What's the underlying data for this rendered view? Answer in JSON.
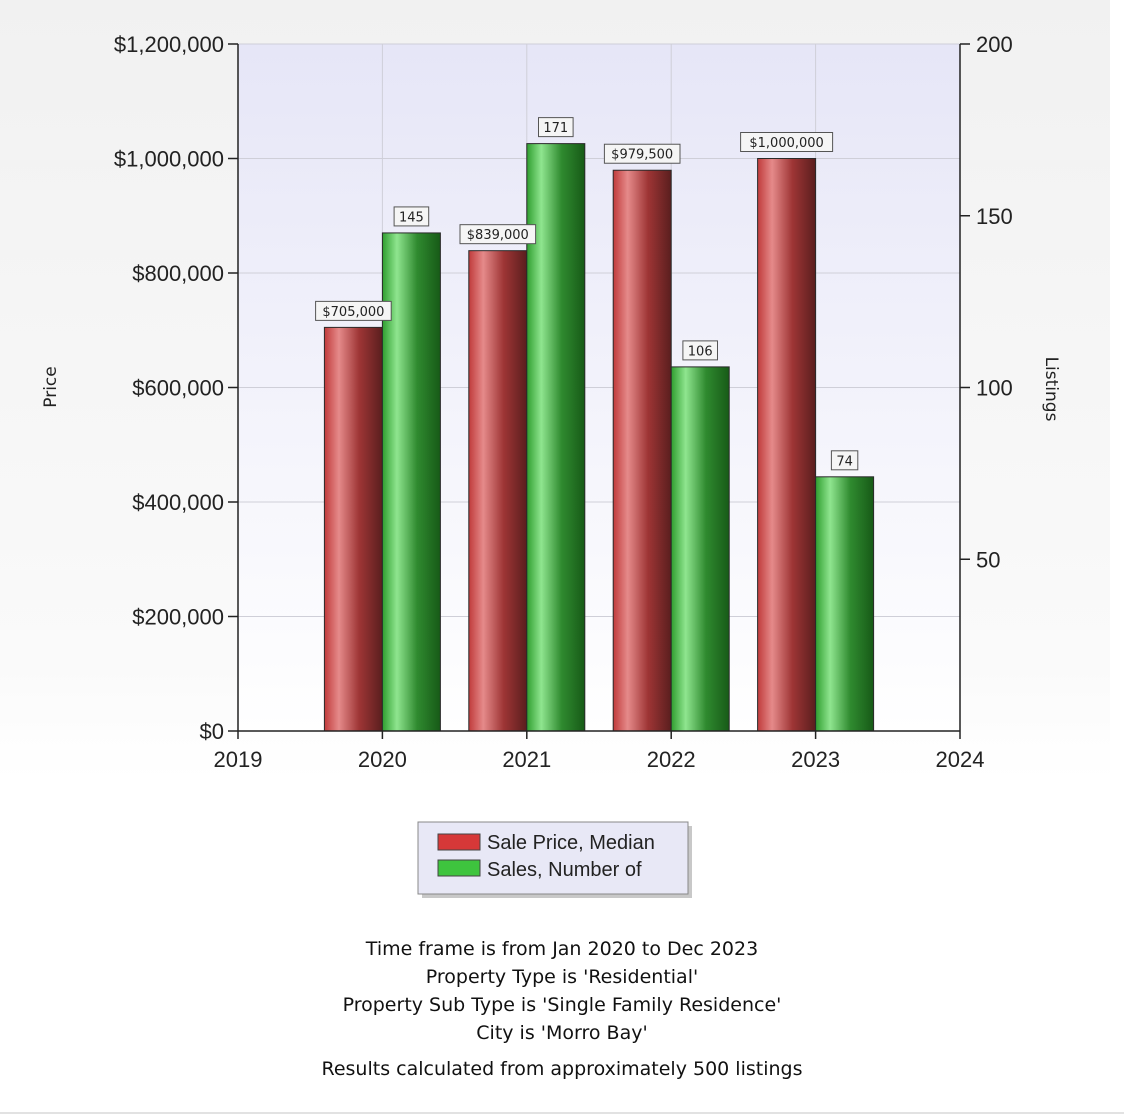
{
  "chart_data": {
    "type": "bar",
    "x_ticks": [
      "2019",
      "2020",
      "2021",
      "2022",
      "2023",
      "2024"
    ],
    "categories": [
      "2020",
      "2021",
      "2022",
      "2023"
    ],
    "ylabel": "Price",
    "y2label": "Listings",
    "ylim": [
      0,
      1200000
    ],
    "y2lim": [
      0,
      200
    ],
    "y_ticks": [
      {
        "value": 0,
        "label": "$0"
      },
      {
        "value": 200000,
        "label": "$200,000"
      },
      {
        "value": 400000,
        "label": "$400,000"
      },
      {
        "value": 600000,
        "label": "$600,000"
      },
      {
        "value": 800000,
        "label": "$800,000"
      },
      {
        "value": 1000000,
        "label": "$1,000,000"
      },
      {
        "value": 1200000,
        "label": "$1,200,000"
      }
    ],
    "y2_ticks": [
      {
        "value": 50,
        "label": "50"
      },
      {
        "value": 100,
        "label": "100"
      },
      {
        "value": 150,
        "label": "150"
      },
      {
        "value": 200,
        "label": "200"
      }
    ],
    "grid": true,
    "legend_position": "bottom-center",
    "series": [
      {
        "name": "Sale Price, Median",
        "axis": "left",
        "color": "#d63838",
        "values": [
          705000,
          839000,
          979500,
          1000000
        ],
        "labels": [
          "$705,000",
          "$839,000",
          "$979,500",
          "$1,000,000"
        ]
      },
      {
        "name": "Sales, Number of",
        "axis": "right",
        "color": "#3ec43e",
        "values": [
          145,
          171,
          106,
          74
        ],
        "labels": [
          "145",
          "171",
          "106",
          "74"
        ]
      }
    ]
  },
  "footer": {
    "criteria": [
      "Time frame is from Jan 2020 to Dec 2023",
      "Property Type is 'Residential'",
      "Property Sub Type is 'Single Family Residence'",
      "City is 'Morro Bay'"
    ],
    "summary": "Results calculated from approximately 500 listings"
  }
}
